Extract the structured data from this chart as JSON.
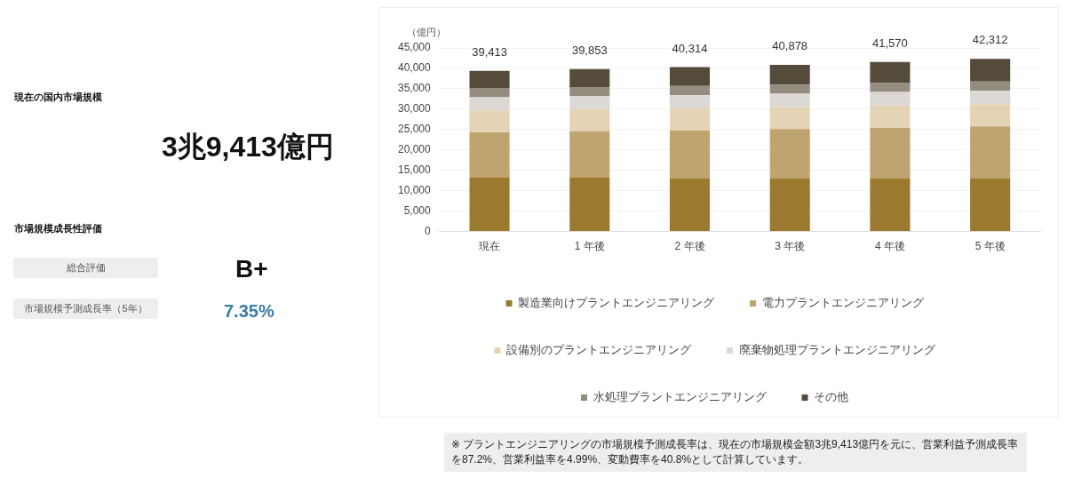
{
  "chart_data": [
    {
      "type": "other",
      "title": "現在の国内市場規模",
      "annotations": [
        "3兆9,413億円",
        "市場規模成長性評価",
        "総合評価",
        "B+",
        "市場規模予測成長率（5年）",
        "7.35%"
      ]
    },
    {
      "type": "bar",
      "stacked": true,
      "ylabel": "（億円）",
      "categories": [
        "現在",
        "1 年後",
        "2 年後",
        "3 年後",
        "4 年後",
        "5 年後"
      ],
      "series": [
        {
          "name": "製造業向けプラントエンジニアリング",
          "color": "#9b7a2f",
          "values": [
            13200,
            13200,
            13100,
            13000,
            13000,
            13000
          ]
        },
        {
          "name": "電力プラントエンジニアリング",
          "color": "#c0a46f",
          "values": [
            11100,
            11400,
            11700,
            12100,
            12400,
            12800
          ]
        },
        {
          "name": "設備別のプラントエンジニアリング",
          "color": "#e5d3b5",
          "values": [
            5400,
            5400,
            5400,
            5400,
            5500,
            5400
          ]
        },
        {
          "name": "廃棄物処理プラントエンジニアリング",
          "color": "#dcd9d5",
          "values": [
            3200,
            3200,
            3200,
            3300,
            3300,
            3300
          ]
        },
        {
          "name": "水処理プラントエンジニアリング",
          "color": "#958c80",
          "values": [
            2300,
            2200,
            2300,
            2200,
            2200,
            2300
          ]
        },
        {
          "name": "その他",
          "color": "#554b3a",
          "values": [
            4213,
            4453,
            4614,
            4878,
            5170,
            5512
          ]
        }
      ],
      "totals": [
        "39,413",
        "39,853",
        "40,314",
        "40,878",
        "41,570",
        "42,312"
      ],
      "ylim": [
        0,
        45000
      ],
      "yticks": [
        0,
        {
          "value": 5000,
          "label": "5,000"
        },
        {
          "value": 10000,
          "label": "10,000"
        },
        {
          "value": 15000,
          "label": "15,000"
        },
        {
          "value": 20000,
          "label": "20,000"
        },
        {
          "value": 25000,
          "label": "25,000"
        },
        {
          "value": 30000,
          "label": "30,000"
        },
        {
          "value": 35000,
          "label": "35,000"
        },
        {
          "value": 40000,
          "label": "40,000"
        },
        {
          "value": 45000,
          "label": "45,000"
        }
      ],
      "grid": "y",
      "legend": "bottom",
      "annotations": [
        "※ プラントエンジニアリングの市場規模予測成長率は、現在の市場規模金額3兆9,413億円を元に、営業利益予測成長率を87.2%、営業利益率を4.99%、変動費率を40.8%として計算しています。"
      ]
    }
  ]
}
